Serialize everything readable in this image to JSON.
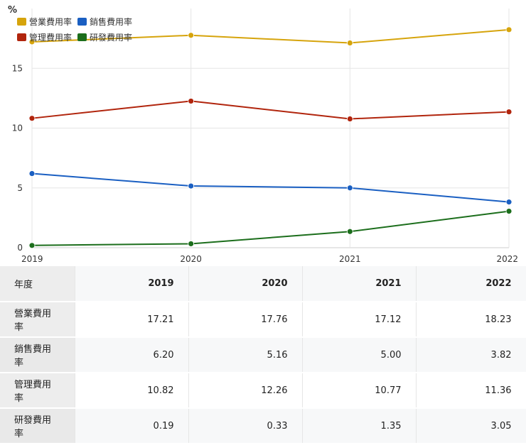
{
  "chart_data": {
    "type": "line",
    "unit": "%",
    "categories": [
      "2019",
      "2020",
      "2021",
      "2022"
    ],
    "ylim": [
      0,
      20
    ],
    "yticks": [
      "0",
      "5",
      "10",
      "15"
    ],
    "grid": true,
    "legend_position": "top-left",
    "series": [
      {
        "name": "營業費用率",
        "color": "#d6a40c",
        "values": [
          17.21,
          17.76,
          17.12,
          18.23
        ]
      },
      {
        "name": "銷售費用率",
        "color": "#1a5fc2",
        "values": [
          6.2,
          5.16,
          5.0,
          3.82
        ]
      },
      {
        "name": "管理費用率",
        "color": "#b1250d",
        "values": [
          10.82,
          12.26,
          10.77,
          11.36
        ]
      },
      {
        "name": "研發費用率",
        "color": "#1c6e1c",
        "values": [
          0.19,
          0.33,
          1.35,
          3.05
        ]
      }
    ]
  },
  "table": {
    "header_label": "年度",
    "years": [
      "2019",
      "2020",
      "2021",
      "2022"
    ],
    "rows": [
      {
        "label": "營業費用率",
        "cells": [
          "17.21",
          "17.76",
          "17.12",
          "18.23"
        ]
      },
      {
        "label": "銷售費用率",
        "cells": [
          "6.20",
          "5.16",
          "5.00",
          "3.82"
        ]
      },
      {
        "label": "管理費用率",
        "cells": [
          "10.82",
          "12.26",
          "10.77",
          "11.36"
        ]
      },
      {
        "label": "研發費用率",
        "cells": [
          "0.19",
          "0.33",
          "1.35",
          "3.05"
        ]
      }
    ]
  }
}
